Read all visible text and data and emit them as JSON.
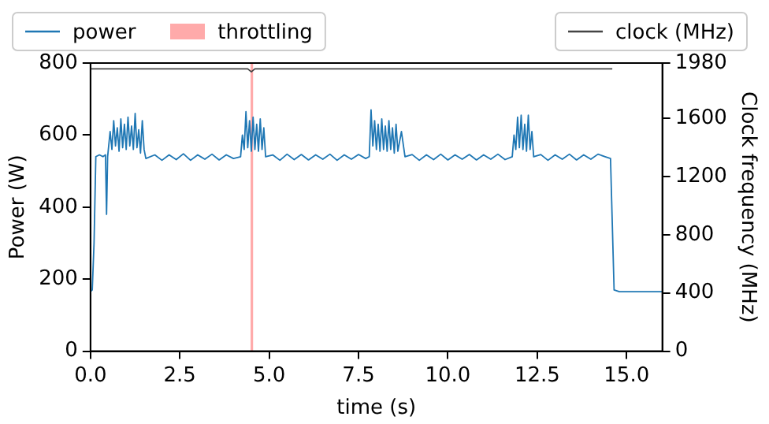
{
  "chart_data": {
    "type": "line",
    "xlabel": "time (s)",
    "ylabel": "Power (W)",
    "y2label": "Clock frequency (MHz)",
    "legend": "top",
    "marker": "none",
    "xlim": [
      0,
      16
    ],
    "xticks": [
      {
        "value": 0,
        "label": "0.0"
      },
      {
        "value": 2.5,
        "label": "2.5"
      },
      {
        "value": 5,
        "label": "5.0"
      },
      {
        "value": 7.5,
        "label": "7.5"
      },
      {
        "value": 10,
        "label": "10.0"
      },
      {
        "value": 12.5,
        "label": "12.5"
      },
      {
        "value": 15,
        "label": "15.0"
      }
    ],
    "ylim": [
      0,
      800
    ],
    "yticks": [
      0,
      200,
      400,
      600,
      800
    ],
    "y2lim": [
      0,
      1980
    ],
    "y2ticks": [
      0,
      400,
      800,
      1200,
      1600,
      1980
    ],
    "bands": [
      {
        "axis": "x",
        "from": 4.48,
        "to": 4.55,
        "label": "throttling",
        "color": "#ffaaaa"
      }
    ],
    "series": [
      {
        "name": "power",
        "color": "#1f77b4",
        "x": [
          0,
          0.05,
          0.1,
          0.15,
          0.25,
          0.35,
          0.42,
          0.45,
          0.48,
          0.55,
          0.6,
          0.65,
          0.7,
          0.75,
          0.8,
          0.85,
          0.9,
          0.95,
          1.0,
          1.05,
          1.1,
          1.15,
          1.2,
          1.25,
          1.3,
          1.35,
          1.4,
          1.45,
          1.5,
          1.55,
          1.8,
          2.0,
          2.2,
          2.4,
          2.6,
          2.8,
          3.0,
          3.2,
          3.4,
          3.6,
          3.8,
          4.0,
          4.2,
          4.25,
          4.3,
          4.35,
          4.4,
          4.45,
          4.5,
          4.55,
          4.6,
          4.65,
          4.7,
          4.75,
          4.8,
          4.85,
          4.9,
          5.1,
          5.3,
          5.5,
          5.7,
          5.9,
          6.1,
          6.3,
          6.5,
          6.7,
          6.9,
          7.1,
          7.3,
          7.5,
          7.7,
          7.8,
          7.85,
          7.9,
          7.95,
          8.0,
          8.05,
          8.1,
          8.15,
          8.2,
          8.25,
          8.3,
          8.35,
          8.4,
          8.45,
          8.5,
          8.55,
          8.6,
          8.7,
          8.8,
          9.0,
          9.2,
          9.4,
          9.6,
          9.8,
          10.0,
          10.2,
          10.4,
          10.6,
          10.8,
          11.0,
          11.2,
          11.4,
          11.6,
          11.8,
          11.85,
          11.9,
          11.95,
          12.0,
          12.05,
          12.1,
          12.15,
          12.2,
          12.25,
          12.3,
          12.35,
          12.4,
          12.6,
          12.8,
          13.0,
          13.2,
          13.4,
          13.6,
          13.8,
          14.0,
          14.2,
          14.4,
          14.55,
          14.65,
          14.8,
          16
        ],
        "values": [
          165,
          170,
          300,
          540,
          545,
          540,
          545,
          380,
          540,
          610,
          560,
          640,
          570,
          620,
          555,
          645,
          565,
          630,
          560,
          650,
          570,
          625,
          560,
          660,
          565,
          615,
          550,
          640,
          560,
          535,
          545,
          530,
          545,
          532,
          548,
          530,
          545,
          533,
          547,
          531,
          545,
          535,
          540,
          600,
          560,
          665,
          565,
          640,
          555,
          650,
          560,
          630,
          555,
          645,
          560,
          620,
          540,
          545,
          530,
          547,
          532,
          546,
          531,
          545,
          533,
          547,
          530,
          545,
          533,
          546,
          535,
          540,
          670,
          570,
          640,
          560,
          630,
          555,
          645,
          560,
          625,
          555,
          640,
          560,
          620,
          550,
          630,
          555,
          610,
          540,
          546,
          530,
          545,
          532,
          547,
          531,
          545,
          533,
          546,
          531,
          545,
          533,
          547,
          532,
          540,
          600,
          560,
          650,
          565,
          655,
          560,
          630,
          555,
          655,
          560,
          610,
          540,
          546,
          530,
          545,
          533,
          547,
          531,
          545,
          533,
          547,
          540,
          535,
          170,
          165,
          165
        ]
      },
      {
        "name": "clock (MHz)",
        "axis": "y2",
        "color": "#444444",
        "x": [
          0,
          4.4,
          4.5,
          4.6,
          14.6
        ],
        "values": [
          1940,
          1940,
          1920,
          1940,
          1940
        ]
      }
    ]
  }
}
